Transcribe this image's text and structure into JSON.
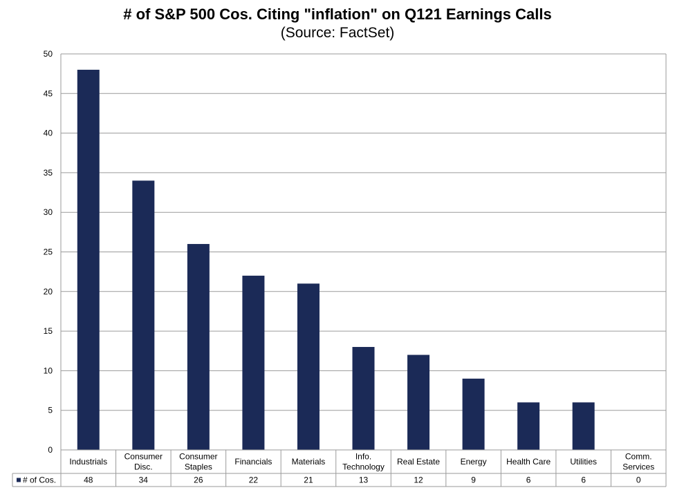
{
  "chart_data": {
    "type": "bar",
    "title": "# of S&P 500 Cos. Citing \"inflation\" on Q121 Earnings Calls",
    "subtitle": "(Source: FactSet)",
    "categories": [
      [
        "Industrials"
      ],
      [
        "Consumer",
        "Disc."
      ],
      [
        "Consumer",
        "Staples"
      ],
      [
        "Financials"
      ],
      [
        "Materials"
      ],
      [
        "Info.",
        "Technology"
      ],
      [
        "Real Estate"
      ],
      [
        "Energy"
      ],
      [
        "Health Care"
      ],
      [
        "Utilities"
      ],
      [
        "Comm.",
        "Services"
      ]
    ],
    "series": [
      {
        "name": "# of Cos.",
        "values": [
          48,
          34,
          26,
          22,
          21,
          13,
          12,
          9,
          6,
          6,
          0
        ]
      }
    ],
    "ylim": [
      0,
      50
    ],
    "yticks": [
      0,
      5,
      10,
      15,
      20,
      25,
      30,
      35,
      40,
      45,
      50
    ],
    "grid": true,
    "legend": "data-table-left",
    "bar_color": "#1b2a57"
  }
}
